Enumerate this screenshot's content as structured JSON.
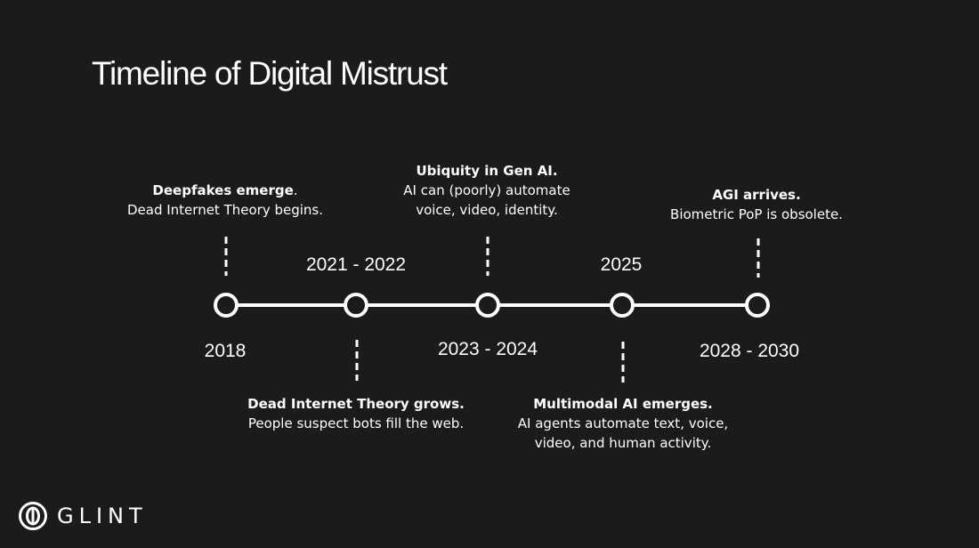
{
  "title": "Timeline of Digital Mistrust",
  "colors": {
    "background": "#1c1a1b",
    "foreground": "#ffffff"
  },
  "timeline": {
    "nodes": [
      {
        "year": "2018",
        "event": {
          "title": "Deepfakes emerge",
          "title_suffix": ".",
          "lines": [
            "Dead Internet Theory begins."
          ]
        }
      },
      {
        "year": "2021 - 2022",
        "event": {
          "title": "Dead Internet Theory grows.",
          "lines": [
            "People suspect bots fill the web."
          ]
        }
      },
      {
        "year": "2023 - 2024",
        "event": {
          "title": "Ubiquity in Gen AI.",
          "lines": [
            "AI can (poorly) automate",
            "voice, video, identity."
          ]
        }
      },
      {
        "year": "2025",
        "event": {
          "title": "Multimodal AI emerges.",
          "lines": [
            "AI agents automate text, voice,",
            "video, and human activity."
          ]
        }
      },
      {
        "year": "2028 - 2030",
        "event": {
          "title": "AGI arrives.",
          "lines": [
            "Biometric PoP is obsolete."
          ]
        }
      }
    ]
  },
  "brand": {
    "name": "GLINT",
    "logo_icon": "glint-logo-icon"
  }
}
